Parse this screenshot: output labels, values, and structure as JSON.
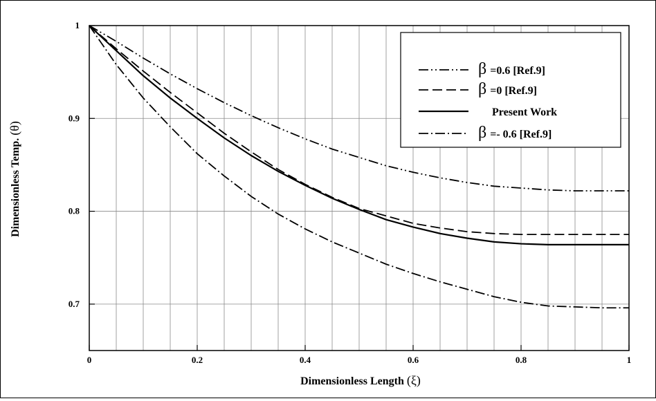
{
  "chart_data": {
    "type": "line",
    "title": "",
    "xlabel": "Dimensionless Length",
    "xlabel_symbol": "(ξ)",
    "ylabel": "Dimensionless Temp.",
    "ylabel_symbol": "(θ)",
    "xlim": [
      0,
      1
    ],
    "ylim": [
      0.65,
      1.0
    ],
    "xticks": [
      0,
      0.2,
      0.4,
      0.6,
      0.8,
      1
    ],
    "xtick_labels": [
      "0",
      "0.2",
      "0.4",
      "0.6",
      "0.8",
      "1"
    ],
    "yticks": [
      0.7,
      0.8,
      0.9,
      1.0
    ],
    "ytick_labels": [
      "0.7",
      "0.8",
      "0.9",
      "1"
    ],
    "grid": true,
    "grid_x_step": 0.05,
    "grid_y_step": 0.1,
    "legend_position": "top-right",
    "x": [
      0,
      0.05,
      0.1,
      0.15,
      0.2,
      0.25,
      0.3,
      0.35,
      0.4,
      0.45,
      0.5,
      0.55,
      0.6,
      0.65,
      0.7,
      0.75,
      0.8,
      0.85,
      0.9,
      0.95,
      1.0
    ],
    "series": [
      {
        "symbol": "β",
        "name": "=0.6 [Ref.9]",
        "dash": "dash-dot-dot",
        "values": [
          1.0,
          0.983,
          0.965,
          0.948,
          0.932,
          0.917,
          0.903,
          0.89,
          0.878,
          0.867,
          0.858,
          0.849,
          0.842,
          0.836,
          0.831,
          0.827,
          0.825,
          0.823,
          0.822,
          0.822,
          0.822
        ]
      },
      {
        "symbol": "β",
        "name": "=0 [Ref.9]",
        "dash": "dashed",
        "values": [
          1.0,
          0.975,
          0.951,
          0.928,
          0.906,
          0.884,
          0.864,
          0.845,
          0.829,
          0.815,
          0.803,
          0.795,
          0.787,
          0.782,
          0.778,
          0.776,
          0.775,
          0.775,
          0.775,
          0.775,
          0.775
        ]
      },
      {
        "symbol": "",
        "name": "Present Work",
        "dash": "solid",
        "values": [
          1.0,
          0.973,
          0.946,
          0.922,
          0.9,
          0.879,
          0.86,
          0.843,
          0.828,
          0.814,
          0.802,
          0.791,
          0.783,
          0.776,
          0.771,
          0.767,
          0.765,
          0.764,
          0.764,
          0.764,
          0.764
        ]
      },
      {
        "symbol": "β",
        "name": "=- 0.6 [Ref.9]",
        "dash": "dash-dot",
        "values": [
          1.0,
          0.958,
          0.922,
          0.891,
          0.862,
          0.838,
          0.816,
          0.797,
          0.781,
          0.767,
          0.755,
          0.743,
          0.733,
          0.724,
          0.716,
          0.708,
          0.702,
          0.698,
          0.697,
          0.696,
          0.696
        ]
      }
    ]
  }
}
